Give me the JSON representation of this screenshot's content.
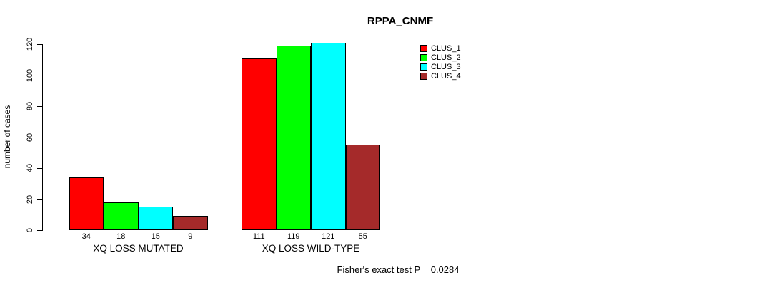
{
  "chart_data": {
    "type": "bar",
    "title": "RPPA_CNMF",
    "xlabel": "",
    "ylabel": "number of cases",
    "ylim": [
      0,
      120
    ],
    "yticks": [
      0,
      20,
      40,
      60,
      80,
      100,
      120
    ],
    "grid": false,
    "legend_position": "top-right",
    "categories": [
      "XQ LOSS MUTATED",
      "XQ LOSS WILD-TYPE"
    ],
    "series": [
      {
        "name": "CLUS_1",
        "color": "#ff0000",
        "values": [
          34,
          111
        ]
      },
      {
        "name": "CLUS_2",
        "color": "#00ff00",
        "values": [
          18,
          119
        ]
      },
      {
        "name": "CLUS_3",
        "color": "#00ffff",
        "values": [
          15,
          121
        ]
      },
      {
        "name": "CLUS_4",
        "color": "#a52a2a",
        "values": [
          9,
          55
        ]
      }
    ],
    "bar_value_labels": [
      [
        "34",
        "18",
        "15",
        "9"
      ],
      [
        "111",
        "119",
        "121",
        "55"
      ]
    ],
    "annotation": "Fisher's exact test P = 0.0284"
  }
}
